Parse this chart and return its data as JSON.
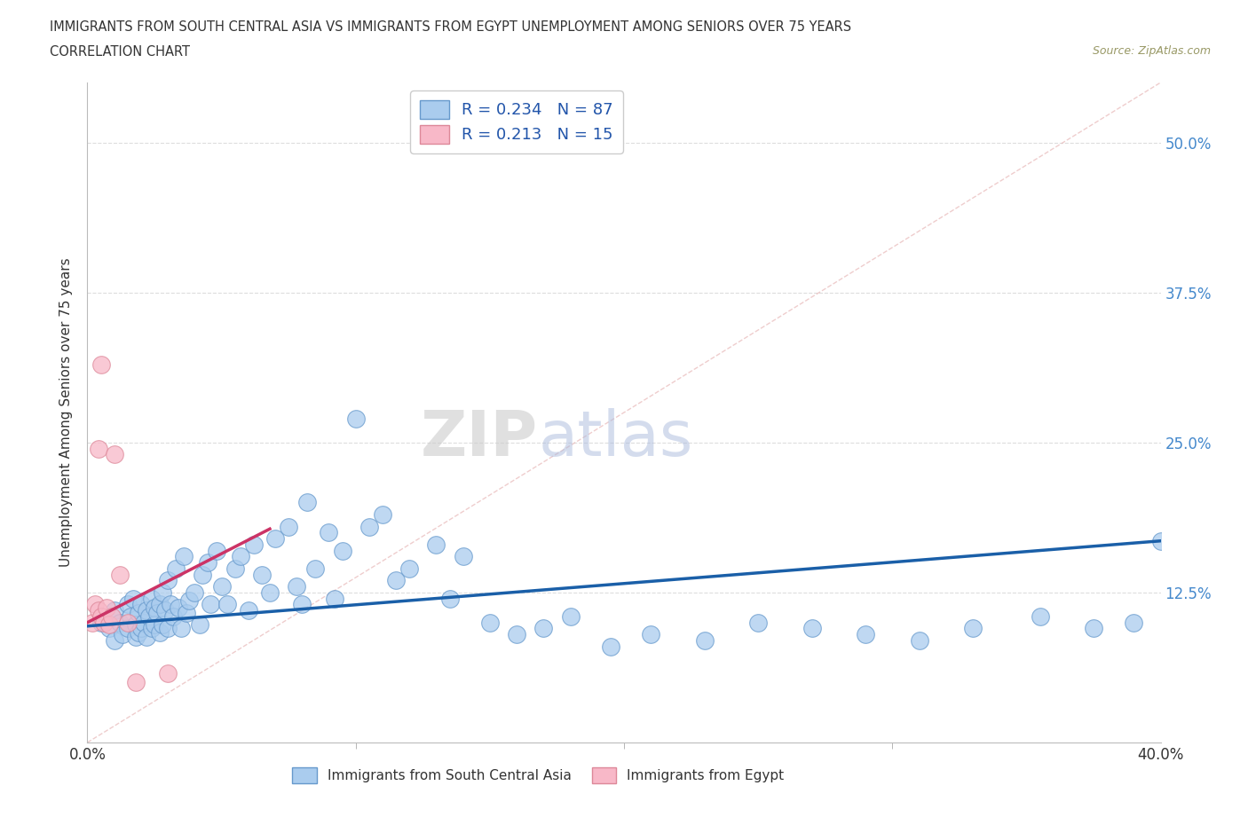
{
  "title_line1": "IMMIGRANTS FROM SOUTH CENTRAL ASIA VS IMMIGRANTS FROM EGYPT UNEMPLOYMENT AMONG SENIORS OVER 75 YEARS",
  "title_line2": "CORRELATION CHART",
  "source": "Source: ZipAtlas.com",
  "ylabel": "Unemployment Among Seniors over 75 years",
  "xmin": 0.0,
  "xmax": 0.4,
  "ymin": 0.0,
  "ymax": 0.55,
  "yticks": [
    0.0,
    0.125,
    0.25,
    0.375,
    0.5
  ],
  "ytick_labels": [
    "",
    "12.5%",
    "25.0%",
    "37.5%",
    "50.0%"
  ],
  "xtick_left_label": "0.0%",
  "xtick_right_label": "40.0%",
  "blue_color": "#aaccee",
  "blue_edge": "#6699cc",
  "pink_color": "#f8b8c8",
  "pink_edge": "#dd8899",
  "trend_blue": "#1a5fa8",
  "trend_pink": "#cc3366",
  "ref_line_color": "#ddaaaa",
  "legend_R1": "0.234",
  "legend_N1": "87",
  "legend_R2": "0.213",
  "legend_N2": "15",
  "label1": "Immigrants from South Central Asia",
  "label2": "Immigrants from Egypt",
  "watermark_zip": "ZIP",
  "watermark_atlas": "atlas",
  "blue_x": [
    0.005,
    0.008,
    0.01,
    0.01,
    0.012,
    0.013,
    0.015,
    0.015,
    0.016,
    0.017,
    0.018,
    0.018,
    0.019,
    0.019,
    0.02,
    0.02,
    0.021,
    0.022,
    0.022,
    0.023,
    0.024,
    0.024,
    0.025,
    0.025,
    0.026,
    0.027,
    0.027,
    0.028,
    0.028,
    0.029,
    0.03,
    0.03,
    0.031,
    0.032,
    0.033,
    0.034,
    0.035,
    0.036,
    0.037,
    0.038,
    0.04,
    0.042,
    0.043,
    0.045,
    0.046,
    0.048,
    0.05,
    0.052,
    0.055,
    0.057,
    0.06,
    0.062,
    0.065,
    0.068,
    0.07,
    0.075,
    0.078,
    0.08,
    0.082,
    0.085,
    0.09,
    0.092,
    0.095,
    0.1,
    0.105,
    0.11,
    0.115,
    0.12,
    0.13,
    0.135,
    0.14,
    0.15,
    0.16,
    0.17,
    0.18,
    0.195,
    0.21,
    0.23,
    0.25,
    0.27,
    0.29,
    0.31,
    0.33,
    0.355,
    0.375,
    0.39,
    0.4
  ],
  "blue_y": [
    0.1,
    0.095,
    0.11,
    0.085,
    0.1,
    0.09,
    0.115,
    0.095,
    0.105,
    0.12,
    0.088,
    0.098,
    0.108,
    0.092,
    0.115,
    0.095,
    0.1,
    0.11,
    0.088,
    0.105,
    0.12,
    0.095,
    0.112,
    0.098,
    0.108,
    0.115,
    0.092,
    0.125,
    0.098,
    0.11,
    0.135,
    0.095,
    0.115,
    0.105,
    0.145,
    0.112,
    0.095,
    0.155,
    0.108,
    0.118,
    0.125,
    0.098,
    0.14,
    0.15,
    0.115,
    0.16,
    0.13,
    0.115,
    0.145,
    0.155,
    0.11,
    0.165,
    0.14,
    0.125,
    0.17,
    0.18,
    0.13,
    0.115,
    0.2,
    0.145,
    0.175,
    0.12,
    0.16,
    0.27,
    0.18,
    0.19,
    0.135,
    0.145,
    0.165,
    0.12,
    0.155,
    0.1,
    0.09,
    0.095,
    0.105,
    0.08,
    0.09,
    0.085,
    0.1,
    0.095,
    0.09,
    0.085,
    0.095,
    0.105,
    0.095,
    0.1,
    0.168
  ],
  "pink_x": [
    0.002,
    0.003,
    0.004,
    0.004,
    0.005,
    0.005,
    0.006,
    0.007,
    0.008,
    0.009,
    0.01,
    0.012,
    0.015,
    0.018,
    0.03
  ],
  "pink_y": [
    0.1,
    0.115,
    0.11,
    0.245,
    0.105,
    0.315,
    0.1,
    0.112,
    0.098,
    0.105,
    0.24,
    0.14,
    0.1,
    0.05,
    0.058
  ],
  "blue_trend_x": [
    0.0,
    0.4
  ],
  "blue_trend_y": [
    0.097,
    0.168
  ],
  "pink_trend_x": [
    0.0,
    0.068
  ],
  "pink_trend_y": [
    0.1,
    0.178
  ]
}
